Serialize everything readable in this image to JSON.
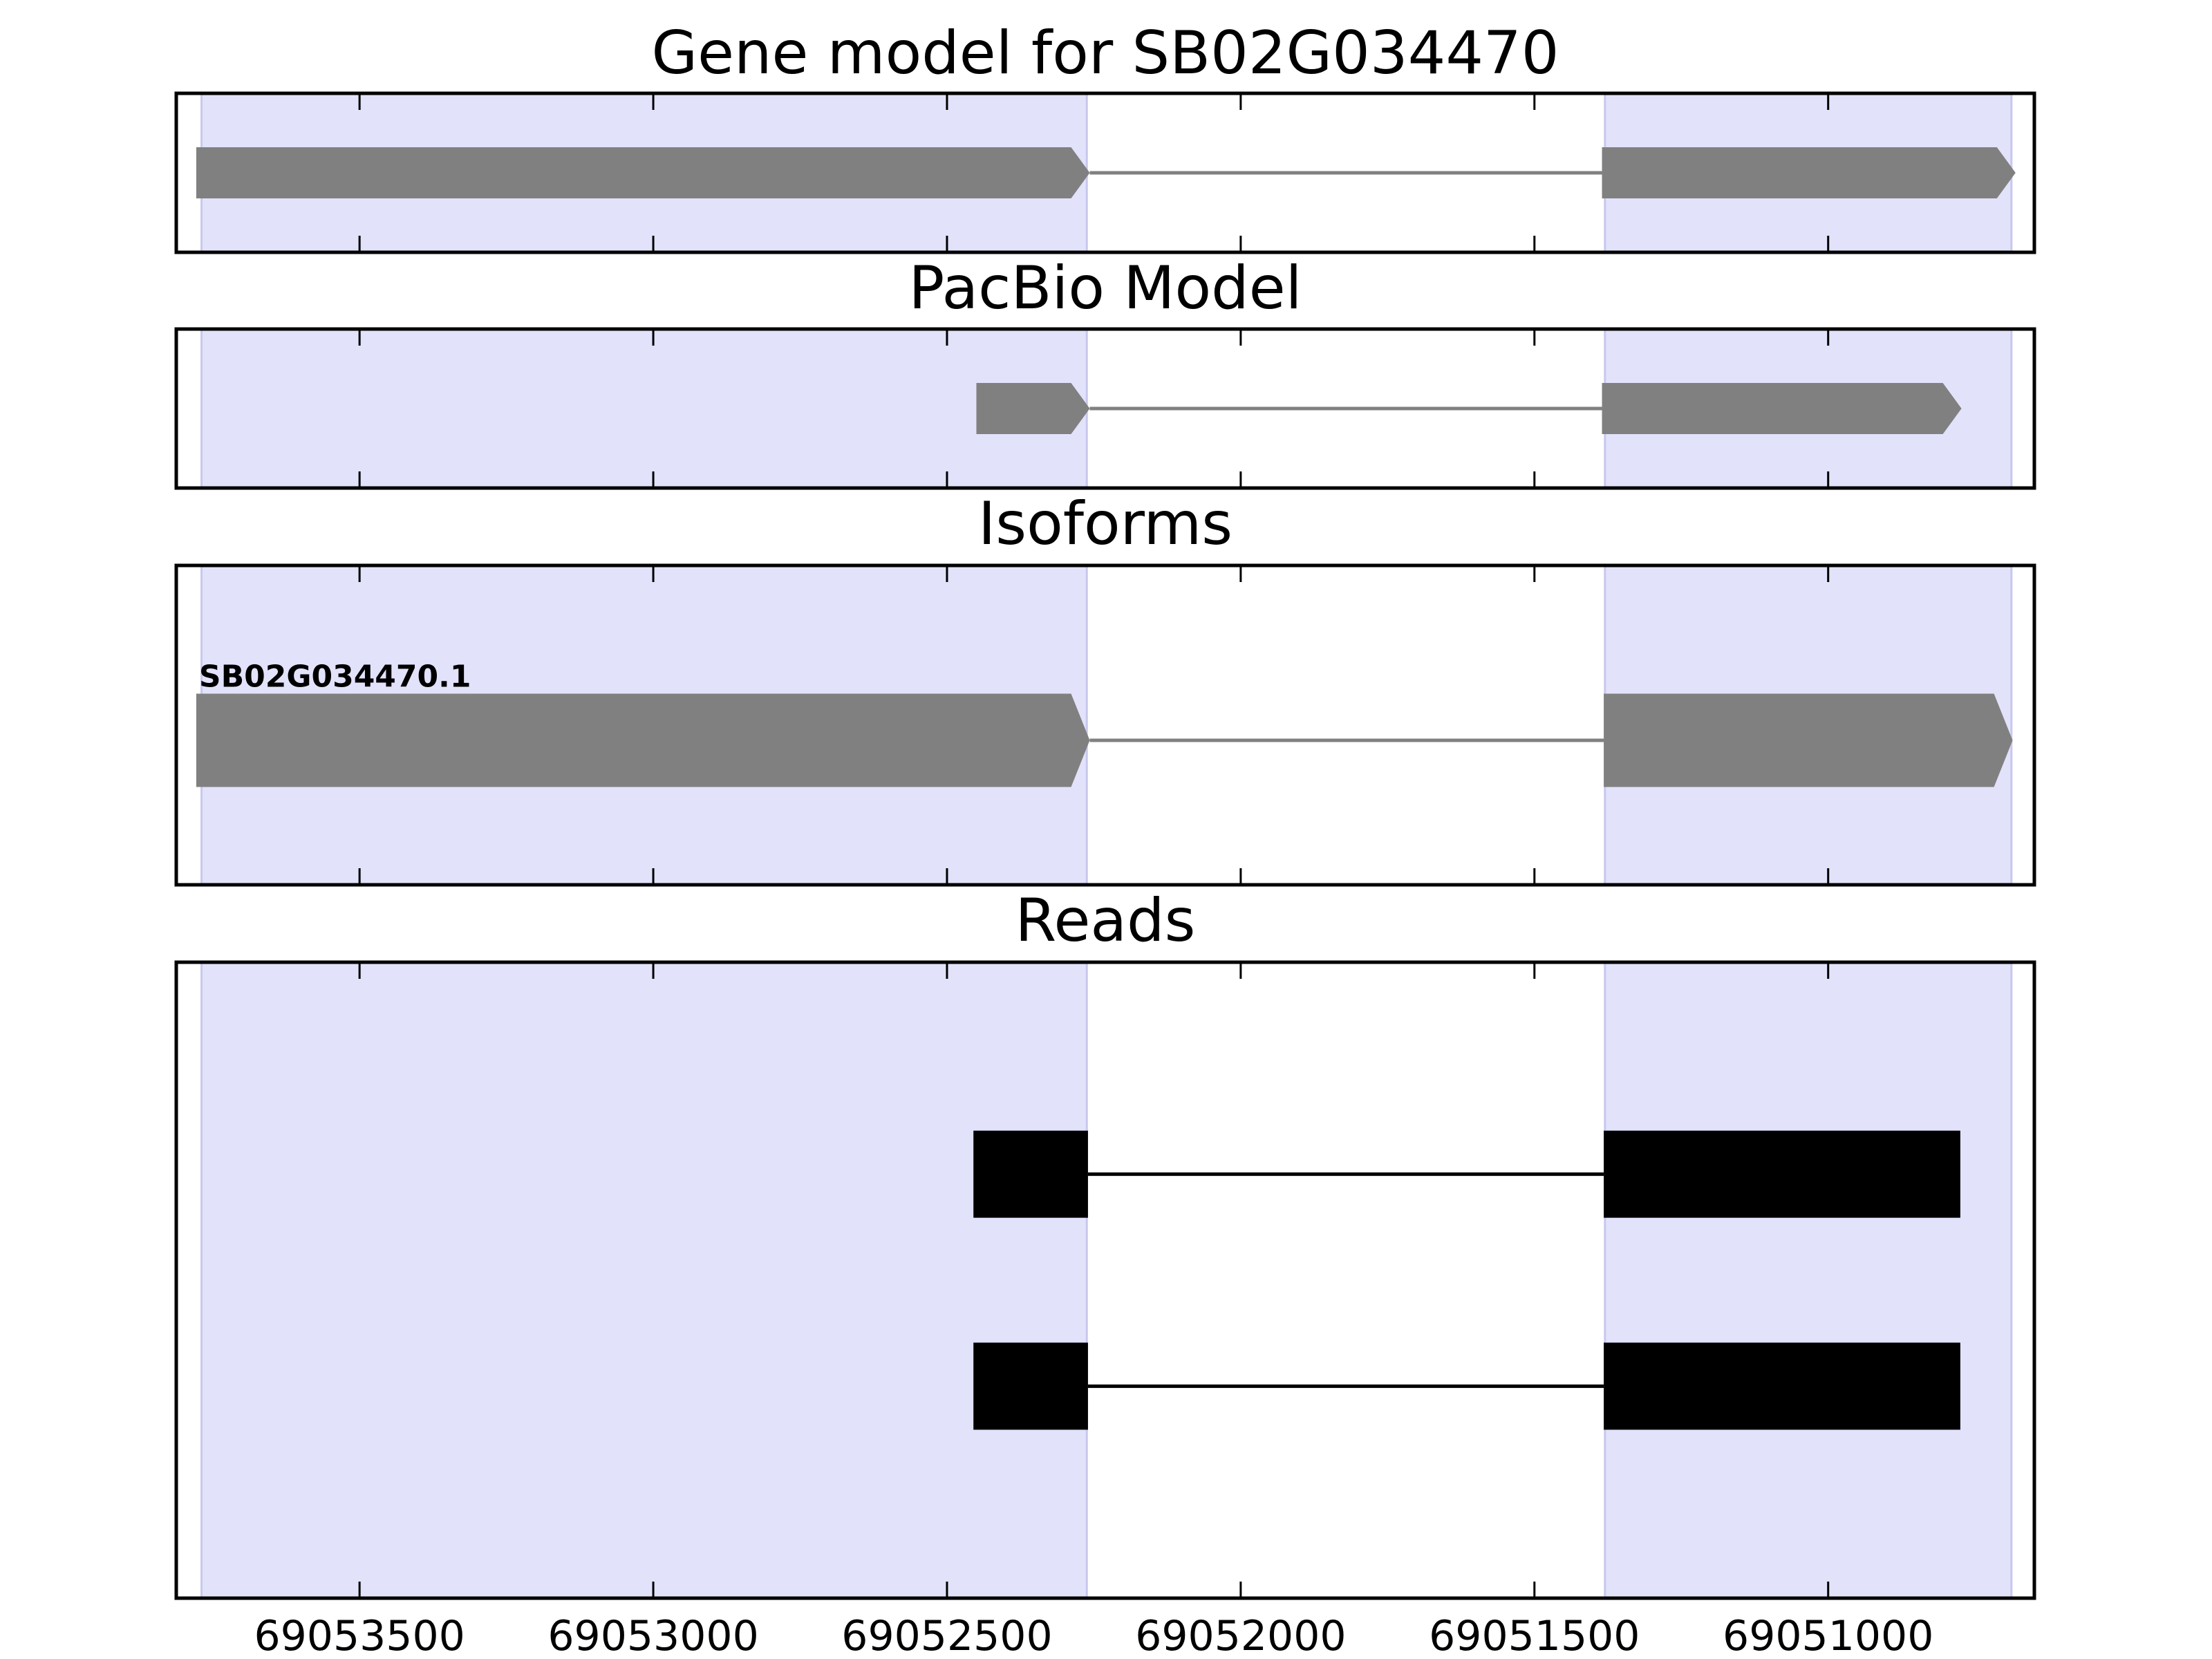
{
  "chart_data": [
    {
      "type": "gene",
      "title": "Gene model for SB02G034470",
      "xlim": [
        69053812,
        69050649
      ],
      "color": "#808080",
      "highlights": [
        [
          69053769,
          69052262
        ],
        [
          69051380,
          69050688
        ]
      ],
      "highlight_color": "#e2e2fb",
      "tracks": [
        {
          "exons": [
            [
              69053778,
              69052257
            ],
            [
              69051385,
              69050681
            ]
          ]
        }
      ]
    },
    {
      "type": "gene",
      "title": "PacBio Model",
      "xlim": [
        69053812,
        69050649
      ],
      "color": "#808080",
      "highlights": [
        [
          69053769,
          69052262
        ],
        [
          69051380,
          69050688
        ]
      ],
      "highlight_color": "#e2e2fb",
      "tracks": [
        {
          "exons": [
            [
              69052450,
              69052257
            ],
            [
              69051385,
              69050773
            ]
          ]
        }
      ]
    },
    {
      "type": "gene",
      "title": "Isoforms",
      "xlim": [
        69053812,
        69050649
      ],
      "color": "#808080",
      "highlights": [
        [
          69053769,
          69052262
        ],
        [
          69051380,
          69050688
        ]
      ],
      "highlight_color": "#e2e2fb",
      "tracks": [
        {
          "name": "SB02G034470.1",
          "exons": [
            [
              69053778,
              69052257
            ],
            [
              69051382,
              69050686
            ]
          ]
        }
      ]
    },
    {
      "type": "reads",
      "title": "Reads",
      "xlim": [
        69053812,
        69050649
      ],
      "color": "#000000",
      "highlights": [
        [
          69053769,
          69052262
        ],
        [
          69051380,
          69050688
        ]
      ],
      "highlight_color": "#e2e2fb",
      "tracks": [
        {
          "exons": [
            [
              69052455,
              69052260
            ],
            [
              69051382,
              69050775
            ]
          ]
        },
        {
          "exons": [
            [
              69052455,
              69052260
            ],
            [
              69051382,
              69050775
            ]
          ]
        }
      ],
      "xticks": [
        69053500,
        69053000,
        69052500,
        69052000,
        69051500,
        69051000
      ]
    }
  ]
}
